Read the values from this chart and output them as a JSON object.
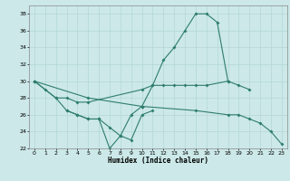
{
  "xlabel": "Humidex (Indice chaleur)",
  "line_color": "#2e7d6e",
  "bg_color": "#cce8e8",
  "grid_color": "#aed4d4",
  "ylim": [
    22,
    39
  ],
  "xlim": [
    -0.5,
    23.5
  ],
  "yticks": [
    22,
    24,
    26,
    28,
    30,
    32,
    34,
    36,
    38
  ],
  "xticks": [
    0,
    1,
    2,
    3,
    4,
    5,
    6,
    7,
    8,
    9,
    10,
    11,
    12,
    13,
    14,
    15,
    16,
    17,
    18,
    19,
    20,
    21,
    22,
    23
  ],
  "line1_x": [
    0,
    1,
    2,
    3,
    4,
    5,
    10,
    11,
    12,
    13,
    14,
    15,
    16,
    18,
    19,
    20
  ],
  "line1_y": [
    30,
    29,
    28,
    28,
    27.5,
    27.5,
    29,
    29.5,
    29.5,
    29.5,
    29.5,
    29.5,
    29.5,
    30,
    29.5,
    29
  ],
  "line2_x": [
    0,
    2,
    3,
    4,
    5,
    6,
    7,
    8,
    9,
    10,
    11
  ],
  "line2_y": [
    30,
    28,
    26.5,
    26,
    25.5,
    25.5,
    22,
    23.5,
    23,
    26,
    26.5
  ],
  "line3_x": [
    3,
    4,
    5,
    6,
    7,
    8,
    9,
    10
  ],
  "line3_y": [
    26.5,
    26,
    25.5,
    25.5,
    24.5,
    23.5,
    26,
    27
  ],
  "line4_x": [
    10,
    11,
    12,
    13,
    14,
    15,
    16,
    17,
    18
  ],
  "line4_y": [
    27,
    29.5,
    32.5,
    34,
    36,
    38,
    38,
    37,
    30
  ],
  "line5_x": [
    0,
    5,
    10,
    15,
    18,
    19,
    20,
    21,
    22,
    23
  ],
  "line5_y": [
    30,
    28,
    27,
    26.5,
    26,
    26,
    25.5,
    25,
    24,
    22.5
  ]
}
